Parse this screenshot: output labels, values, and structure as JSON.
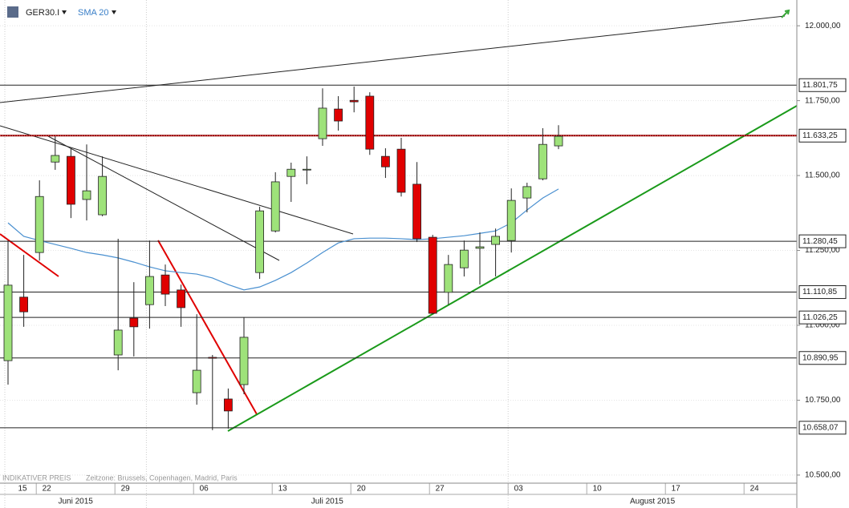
{
  "chart_data": {
    "type": "candlestick",
    "title": "GER30.I",
    "footer_left": "INDIKATIVER PREIS",
    "footer_zone": "Zeitzone: Brussels, Copenhagen, Madrid, Paris",
    "up_color": "#9ee27a",
    "down_color": "#e00000",
    "x": [
      "2015-06-18",
      "2015-06-19",
      "2015-06-22",
      "2015-06-23",
      "2015-06-24",
      "2015-06-25",
      "2015-06-26",
      "2015-06-29",
      "2015-06-30",
      "2015-07-01",
      "2015-07-02",
      "2015-07-03",
      "2015-07-06",
      "2015-07-07",
      "2015-07-08",
      "2015-07-09",
      "2015-07-10",
      "2015-07-13",
      "2015-07-14",
      "2015-07-15",
      "2015-07-16",
      "2015-07-17",
      "2015-07-20",
      "2015-07-21",
      "2015-07-22",
      "2015-07-23",
      "2015-07-24",
      "2015-07-27",
      "2015-07-28",
      "2015-07-29",
      "2015-07-30",
      "2015-07-31",
      "2015-08-03",
      "2015-08-04",
      "2015-08-05",
      "2015-08-06"
    ],
    "open": [
      10882,
      11094,
      11243,
      11545,
      11564,
      11420,
      11369,
      10901,
      11024,
      11069,
      11168,
      11118,
      10775,
      10893,
      10754,
      10802,
      11176,
      11315,
      11497,
      11519,
      11623,
      11722,
      11751,
      11765,
      11564,
      11588,
      11471,
      11294,
      11110,
      11192,
      11257,
      11270,
      11283,
      11425,
      11489,
      11599
    ],
    "high": [
      11283,
      11235,
      11484,
      11631,
      11591,
      11604,
      11564,
      11289,
      11144,
      11283,
      11203,
      11136,
      11037,
      10901,
      10789,
      11027,
      11396,
      11511,
      11543,
      11564,
      11791,
      11765,
      11797,
      11778,
      11591,
      11626,
      11545,
      11302,
      11235,
      11283,
      11310,
      11323,
      11457,
      11476,
      11658,
      11668
    ],
    "low": [
      10802,
      10995,
      11216,
      11519,
      11358,
      11350,
      11364,
      10850,
      10896,
      10989,
      11064,
      10995,
      10735,
      10650,
      10655,
      10770,
      11155,
      11310,
      11412,
      11471,
      11599,
      11650,
      11711,
      11569,
      11492,
      11430,
      11278,
      11037,
      11069,
      11163,
      11136,
      11163,
      11243,
      11377,
      11484,
      11588
    ],
    "close": [
      11134,
      11045,
      11430,
      11567,
      11404,
      11449,
      11497,
      10984,
      10995,
      11163,
      11104,
      11059,
      10850,
      10890,
      10714,
      10960,
      11382,
      11479,
      11521,
      11521,
      11725,
      11682,
      11746,
      11588,
      11529,
      11444,
      11289,
      11040,
      11203,
      11251,
      11262,
      11297,
      11417,
      11463,
      11604,
      11631
    ],
    "series": [
      {
        "name": "SMA 20",
        "color": "#4a90d0",
        "values": [
          11342,
          11297,
          11283,
          11270,
          11257,
          11243,
          11235,
          11225,
          11211,
          11195,
          11182,
          11176,
          11171,
          11158,
          11136,
          11118,
          11128,
          11150,
          11176,
          11208,
          11243,
          11275,
          11289,
          11291,
          11291,
          11289,
          11286,
          11289,
          11294,
          11299,
          11307,
          11315,
          11342,
          11385,
          11425,
          11455
        ]
      }
    ],
    "ylim": [
      10473,
      12086
    ],
    "yticks": [
      {
        "value": 12000,
        "label": "12.000,00"
      },
      {
        "value": 11750,
        "label": "11.750,00"
      },
      {
        "value": 11500,
        "label": "11.500,00"
      },
      {
        "value": 11250,
        "label": "11.250,00"
      },
      {
        "value": 11000,
        "label": "11.000,00"
      },
      {
        "value": 10750,
        "label": "10.750,00"
      },
      {
        "value": 10500,
        "label": "10.500,00"
      }
    ],
    "levels": [
      {
        "value": 11801.75,
        "label": "11.801,75"
      },
      {
        "value": 11633.25,
        "label": "11.633,25"
      },
      {
        "value": 11280.45,
        "label": "11.280,45"
      },
      {
        "value": 11110.85,
        "label": "11.110,85"
      },
      {
        "value": 11026.25,
        "label": "11.026,25"
      },
      {
        "value": 10890.95,
        "label": "10.890,95"
      },
      {
        "value": 10658.07,
        "label": "10.658,07"
      }
    ],
    "xticks": [
      {
        "value": "2015-06-15",
        "label": "15"
      },
      {
        "value": "2015-06-22",
        "label": "22"
      },
      {
        "value": "2015-06-29",
        "label": "29"
      },
      {
        "value": "2015-07-06",
        "label": "06"
      },
      {
        "value": "2015-07-13",
        "label": "13"
      },
      {
        "value": "2015-07-20",
        "label": "20"
      },
      {
        "value": "2015-07-27",
        "label": "27"
      },
      {
        "value": "2015-08-03",
        "label": "03"
      },
      {
        "value": "2015-08-10",
        "label": "10"
      },
      {
        "value": "2015-08-17",
        "label": "17"
      },
      {
        "value": "2015-08-24",
        "label": "24"
      }
    ],
    "months": [
      {
        "value": "2015-06",
        "label": "Juni 2015"
      },
      {
        "value": "2015-07",
        "label": "Juli 2015"
      },
      {
        "value": "2015-08",
        "label": "August 2015"
      }
    ]
  }
}
